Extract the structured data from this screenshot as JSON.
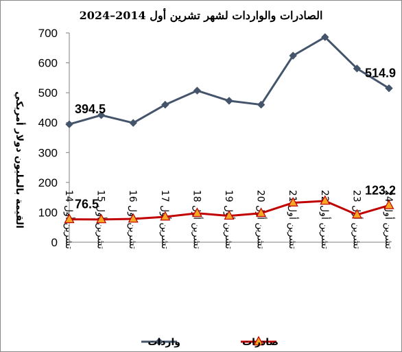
{
  "chart_data": {
    "type": "line",
    "title": "الصادرات والواردات لشهر تشرين أول 2014–2024",
    "ylabel": "القيمة بالمليون دولار أمريكي",
    "xlabel": "",
    "ylim": [
      0,
      700
    ],
    "yticks": [
      0,
      100,
      200,
      300,
      400,
      500,
      600,
      700
    ],
    "grid": false,
    "legend_position": "bottom",
    "categories": [
      "تشرين أول 14",
      "تشرين أول 15",
      "تشرين أول 16",
      "تشرين أول 17",
      "تشرين أول 18",
      "تشرين أول 19",
      "تشرين أول 20",
      "تشرين أول 21",
      "تشرين أول 22",
      "تشرين أول 23",
      "تشرين أول 24"
    ],
    "series": [
      {
        "name": "واردات",
        "color": "#44546a",
        "marker": "diamond",
        "values": [
          394.5,
          425,
          399,
          460,
          507,
          473,
          460,
          624,
          686,
          581,
          514.9
        ],
        "labels": [
          {
            "index": 0,
            "text": "394.5"
          },
          {
            "index": 10,
            "text": "514.9"
          }
        ]
      },
      {
        "name": "صادرات",
        "color": "#c00000",
        "marker": "triangle",
        "marker_fill": "#f5a623",
        "values": [
          76.5,
          76,
          78,
          85,
          97,
          88,
          97,
          132,
          138,
          92,
          123.2
        ],
        "labels": [
          {
            "index": 0,
            "text": "76.5"
          },
          {
            "index": 10,
            "text": "123.2"
          }
        ]
      }
    ]
  }
}
